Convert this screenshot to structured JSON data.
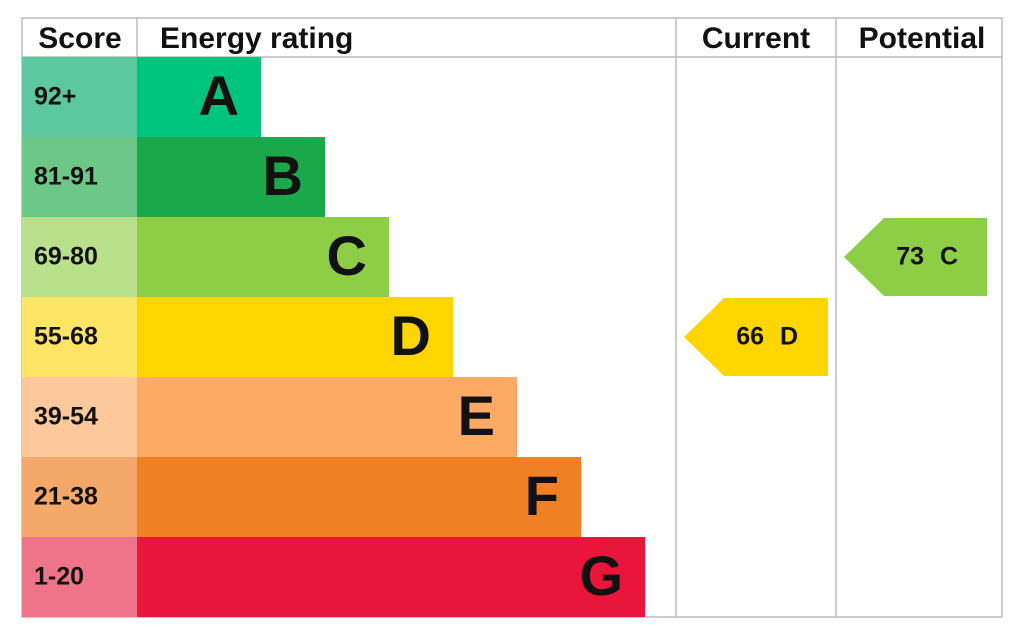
{
  "headers": {
    "score": "Score",
    "rating": "Energy rating",
    "current": "Current",
    "potential": "Potential"
  },
  "bands": [
    {
      "score": "92+",
      "letter": "A",
      "color": "#00c47e",
      "light_color": "#5cc8a0"
    },
    {
      "score": "81-91",
      "letter": "B",
      "color": "#1ba84b",
      "light_color": "#6dc787"
    },
    {
      "score": "69-80",
      "letter": "C",
      "color": "#8dce46",
      "light_color": "#b9e08a"
    },
    {
      "score": "55-68",
      "letter": "D",
      "color": "#ffd500",
      "light_color": "#ffe566"
    },
    {
      "score": "39-54",
      "letter": "E",
      "color": "#fcaa65",
      "light_color": "#fdc89c"
    },
    {
      "score": "21-38",
      "letter": "F",
      "color": "#ef8023",
      "light_color": "#f4a86a"
    },
    {
      "score": "1-20",
      "letter": "G",
      "color": "#e9153b",
      "light_color": "#f07489"
    }
  ],
  "current": {
    "score": 66,
    "band": "D"
  },
  "potential": {
    "score": 73,
    "band": "C"
  }
}
